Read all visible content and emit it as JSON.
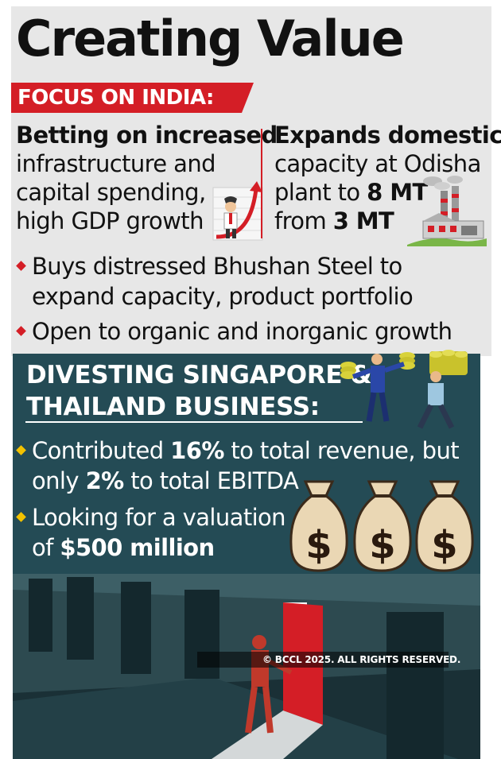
{
  "title": "Creating Value",
  "banner": "FOCUS ON INDIA:",
  "left_column": {
    "lead": "Betting on increased",
    "lines": [
      "infrastructure and",
      "capital spending,",
      "high GDP growth"
    ]
  },
  "right_column": {
    "lead": "Expands domestic",
    "line1": "capacity at Odisha",
    "line2_pre": "plant to ",
    "line2_bold": "8 MT",
    "line3_pre": "from ",
    "line3_bold": "3 MT"
  },
  "india_bullets": [
    [
      "Buys distressed Bhushan Steel to",
      "expand capacity, product portfolio"
    ],
    [
      "Open to organic and inorganic growth"
    ]
  ],
  "divest": {
    "heading_line1": "DIVESTING SINGAPORE &",
    "heading_line2": "THAILAND BUSINESS:",
    "bullet1": {
      "pre": "Contributed ",
      "bold1": "16%",
      "mid": " to total revenue, but",
      "line2_pre": "only ",
      "bold2": "2%",
      "line2_post": " to total EBITDA"
    },
    "bullet2": {
      "line1": "Looking for a valuation",
      "line2_pre": "of ",
      "bold": "$500 million"
    }
  },
  "money_bag_symbol": "$",
  "copyright": "© BCCL 2025. ALL RIGHTS RESERVED.",
  "colors": {
    "accent_red": "#d41e26",
    "panel_teal": "#244b55",
    "bullet_yellow": "#f2c200",
    "background_grey": "#e7e7e7"
  },
  "icons": [
    "rising-arrow-businessman-icon",
    "steel-plant-icon",
    "businessmen-carrying-cash-icon",
    "money-bag-icon",
    "open-door-scene-icon"
  ]
}
